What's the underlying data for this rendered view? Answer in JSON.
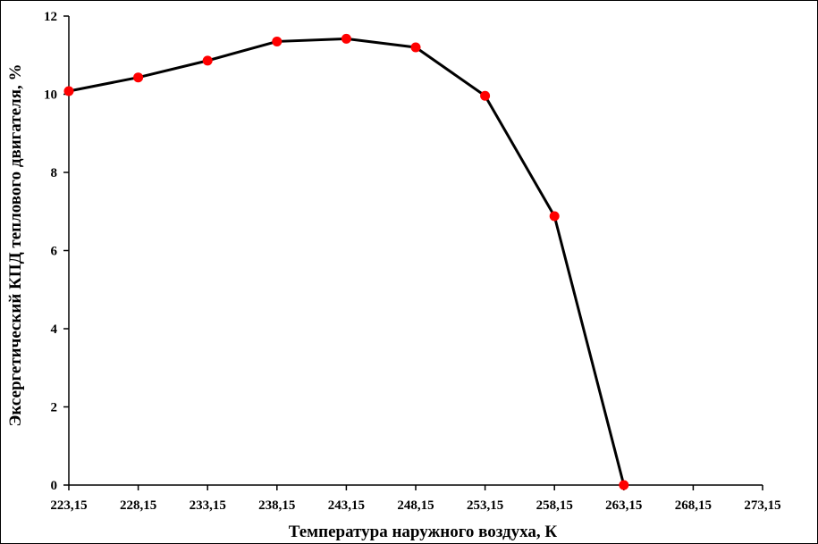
{
  "chart_data": {
    "type": "line",
    "title": "",
    "xlabel": "Температура наружного воздуха, К",
    "ylabel": "Эксергетический КПД теплового двигателя, %",
    "x": [
      223.15,
      228.15,
      233.15,
      238.15,
      243.15,
      248.15,
      253.15,
      258.15,
      263.15
    ],
    "series": [
      {
        "values": [
          10.08,
          10.43,
          10.86,
          11.35,
          11.42,
          11.2,
          9.96,
          6.88,
          0.0
        ]
      }
    ],
    "xlim": [
      223.15,
      273.15
    ],
    "ylim": [
      0,
      12
    ],
    "x_ticks": [
      "223,15",
      "228,15",
      "233,15",
      "238,15",
      "243,15",
      "248,15",
      "253,15",
      "258,15",
      "263,15",
      "268,15",
      "273,15"
    ],
    "y_ticks": [
      "0",
      "2",
      "4",
      "6",
      "8",
      "10",
      "12"
    ],
    "grid": false,
    "legend": "none",
    "colors": {
      "line": "#000000",
      "marker": "#ff0000",
      "axis": "#000000"
    }
  }
}
